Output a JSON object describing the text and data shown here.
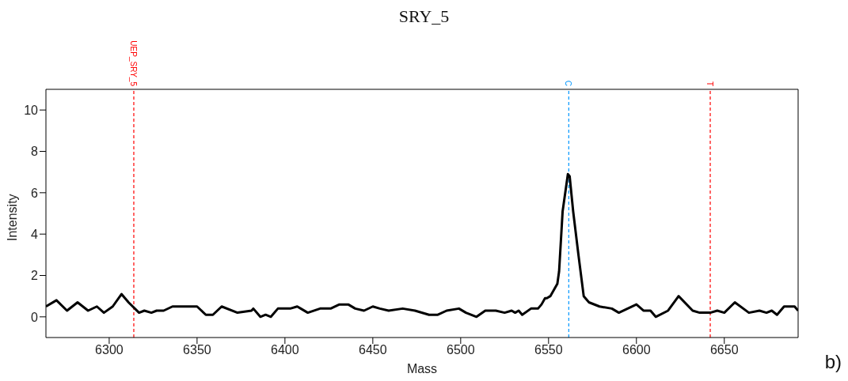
{
  "chart_data": {
    "type": "line",
    "title": "SRY_5",
    "xlabel": "Mass",
    "ylabel": "Intensity",
    "x": [
      6264,
      6270,
      6276,
      6282,
      6288,
      6293,
      6297,
      6302,
      6307,
      6311,
      6317,
      6320,
      6324,
      6327,
      6331,
      6336,
      6348,
      6350,
      6355,
      6359,
      6364,
      6373,
      6381,
      6382,
      6386,
      6389,
      6392,
      6396,
      6403,
      6407,
      6409,
      6413,
      6420,
      6426,
      6431,
      6436,
      6440,
      6445,
      6450,
      6454,
      6459,
      6467,
      6474,
      6482,
      6487,
      6492,
      6499,
      6503,
      6509,
      6514,
      6520,
      6525,
      6529,
      6531,
      6533,
      6535,
      6540,
      6544,
      6546,
      6548,
      6549,
      6551,
      6555,
      6556,
      6558,
      6561,
      6562,
      6564,
      6567,
      6570,
      6573,
      6579,
      6586,
      6590,
      6600,
      6604,
      6608,
      6611,
      6618,
      6624,
      6632,
      6636,
      6642,
      6646,
      6650,
      6656,
      6664,
      6670,
      6674,
      6677,
      6680,
      6684,
      6690,
      6692
    ],
    "values": [
      0.5,
      0.8,
      0.3,
      0.7,
      0.3,
      0.5,
      0.2,
      0.5,
      1.1,
      0.7,
      0.2,
      0.3,
      0.2,
      0.3,
      0.3,
      0.5,
      0.5,
      0.5,
      0.1,
      0.1,
      0.5,
      0.2,
      0.3,
      0.4,
      0.0,
      0.1,
      0.0,
      0.4,
      0.4,
      0.5,
      0.4,
      0.2,
      0.4,
      0.4,
      0.6,
      0.6,
      0.4,
      0.3,
      0.5,
      0.4,
      0.3,
      0.4,
      0.3,
      0.1,
      0.1,
      0.3,
      0.4,
      0.2,
      0.0,
      0.3,
      0.3,
      0.2,
      0.3,
      0.2,
      0.3,
      0.1,
      0.4,
      0.4,
      0.6,
      0.9,
      0.9,
      1.0,
      1.6,
      2.2,
      5.1,
      6.9,
      6.8,
      5.1,
      3.0,
      1.0,
      0.7,
      0.5,
      0.4,
      0.2,
      0.6,
      0.3,
      0.3,
      0.0,
      0.3,
      1.0,
      0.3,
      0.2,
      0.2,
      0.3,
      0.2,
      0.7,
      0.2,
      0.3,
      0.2,
      0.3,
      0.1,
      0.5,
      0.5,
      0.3
    ],
    "color": "#000000",
    "marker": "none",
    "line_style": "solid",
    "xlim": [
      6264,
      6692
    ],
    "ylim": [
      -1,
      11
    ],
    "xticks": [
      6300,
      6350,
      6400,
      6450,
      6500,
      6550,
      6600,
      6650
    ],
    "yticks": [
      0,
      2,
      4,
      6,
      8,
      10
    ],
    "ref_lines": [
      {
        "axis": "x",
        "value": 6314,
        "label": "UEP_SRY_5",
        "color": "#ff0000",
        "line_style": "dashed"
      },
      {
        "axis": "x",
        "value": 6561.5,
        "label": "C",
        "color": "#0096ff",
        "line_style": "dashed"
      },
      {
        "axis": "x",
        "value": 6642,
        "label": "T",
        "color": "#ff0000",
        "line_style": "dashed"
      }
    ],
    "annotations": [
      "b)"
    ]
  }
}
